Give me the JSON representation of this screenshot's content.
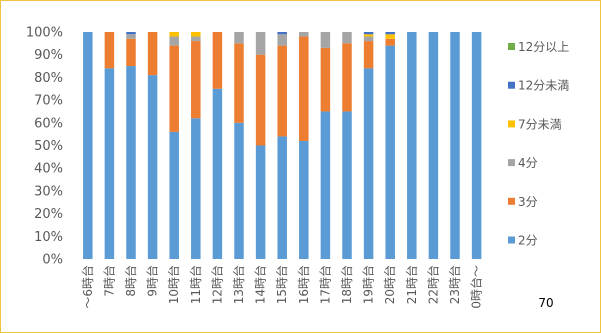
{
  "chart_data": {
    "type": "bar",
    "stacked": true,
    "percent_stacked": true,
    "categories": [
      "～6時台",
      "7時台",
      "8時台",
      "9時台",
      "10時台",
      "11時台",
      "12時台",
      "13時台",
      "14時台",
      "15時台",
      "16時台",
      "17時台",
      "18時台",
      "19時台",
      "20時台",
      "21時台",
      "22時台",
      "23時台",
      "0時台～"
    ],
    "series": [
      {
        "name": "2分",
        "color": "#5b9bd5",
        "values": [
          100,
          84,
          85,
          81,
          56,
          62,
          75,
          60,
          50,
          54,
          52,
          65,
          65,
          84,
          94,
          100,
          100,
          100,
          100
        ]
      },
      {
        "name": "3分",
        "color": "#ed7d31",
        "values": [
          0,
          16,
          12,
          19,
          38,
          34,
          25,
          35,
          40,
          40,
          46,
          28,
          30,
          12,
          3,
          0,
          0,
          0,
          0
        ]
      },
      {
        "name": "4分",
        "color": "#a5a5a5",
        "values": [
          0,
          0,
          2,
          0,
          4,
          2,
          0,
          5,
          10,
          5,
          2,
          7,
          5,
          2,
          0,
          0,
          0,
          0,
          0
        ]
      },
      {
        "name": "7分未満",
        "color": "#ffc000",
        "values": [
          0,
          0,
          0,
          0,
          2,
          2,
          0,
          0,
          0,
          0,
          0,
          0,
          0,
          1,
          2,
          0,
          0,
          0,
          0
        ]
      },
      {
        "name": "12分未満",
        "color": "#4472c4",
        "values": [
          0,
          0,
          1,
          0,
          0,
          0,
          0,
          0,
          0,
          1,
          0,
          0,
          0,
          1,
          1,
          0,
          0,
          0,
          0
        ]
      },
      {
        "name": "12分以上",
        "color": "#70ad47",
        "values": [
          0,
          0,
          0,
          0,
          0,
          0,
          0,
          0,
          0,
          0,
          0,
          0,
          0,
          0,
          0,
          0,
          0,
          0,
          0
        ]
      }
    ],
    "yticks": [
      "0%",
      "10%",
      "20%",
      "30%",
      "40%",
      "50%",
      "60%",
      "70%",
      "80%",
      "90%",
      "100%"
    ],
    "ylim": [
      0,
      100
    ],
    "grid": false,
    "legend_position": "right"
  },
  "page_number": "70"
}
